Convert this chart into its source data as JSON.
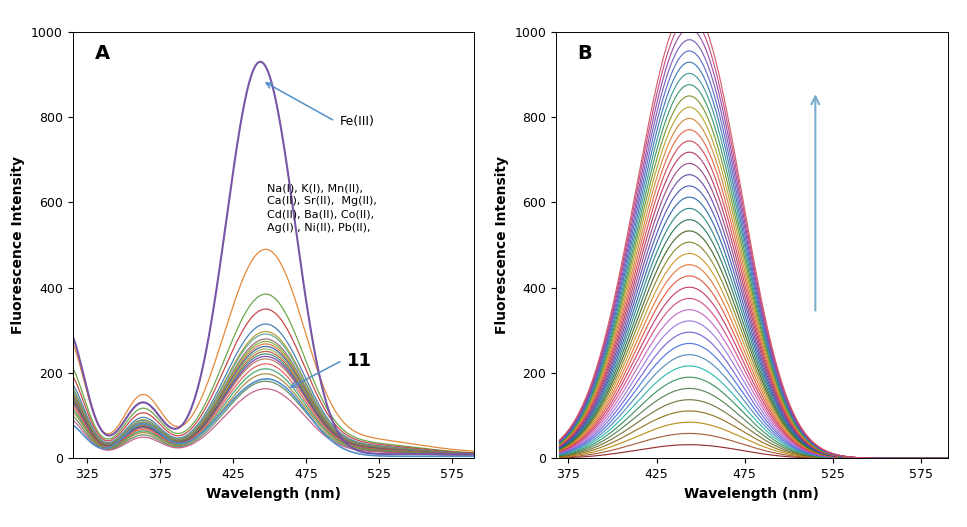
{
  "panel_A": {
    "label": "A",
    "xlabel": "Wavelength (nm)",
    "ylabel": "Fluorescence Intensity",
    "xlim": [
      315,
      590
    ],
    "ylim": [
      0,
      1000
    ],
    "xticks": [
      325,
      375,
      425,
      475,
      525,
      575
    ],
    "yticks": [
      0,
      200,
      400,
      600,
      800,
      1000
    ],
    "fe3_annotation": "Fe(III)",
    "other_annotation": "Na(I), K(I), Mn(II),\nCa(II), Sr(II),  Mg(II),\nCd(II), Ba(II), Co(II),\nAg(I) , Ni(II), Pb(II),",
    "sensor_annotation": "11",
    "fe3_color": "#7855a5",
    "sensor_color": "#5090c8",
    "annotation_arrow_color": "#5090c8"
  },
  "panel_B": {
    "label": "B",
    "xlabel": "Wavelength (nm)",
    "ylabel": "Fluorescence Intensity",
    "xlim": [
      368,
      590
    ],
    "ylim": [
      0,
      1000
    ],
    "xticks": [
      375,
      425,
      475,
      525,
      575
    ],
    "yticks": [
      0,
      200,
      400,
      600,
      800,
      1000
    ],
    "arrow_color": "#7aaccc",
    "num_spectra": 40,
    "peak_max": 985,
    "peak_min": 30
  },
  "other_colors_A": [
    "#e07820",
    "#5a9a30",
    "#c03030",
    "#3070b0",
    "#b09020",
    "#50a090",
    "#906070",
    "#70b030",
    "#d07030",
    "#3050a0",
    "#90b050",
    "#b05030",
    "#308070",
    "#7030b0",
    "#b07050",
    "#e05050",
    "#30a060",
    "#a08030",
    "#508050",
    "#c05080"
  ],
  "colors_B": [
    "#8b1a1a",
    "#a0522d",
    "#b8860b",
    "#8b6914",
    "#6b6b2f",
    "#4a7c4a",
    "#2e8b57",
    "#20b2aa",
    "#4682b4",
    "#4169e1",
    "#6a5acd",
    "#9370db",
    "#c060c0",
    "#d04080",
    "#c03060",
    "#e05030",
    "#e07030",
    "#cc9020",
    "#808020",
    "#406020",
    "#207050",
    "#208080",
    "#2060a0",
    "#4050b0",
    "#6040a0",
    "#904080",
    "#b03060",
    "#d04050",
    "#e06040",
    "#d08030",
    "#b0a020",
    "#709020",
    "#309060",
    "#309090",
    "#3070b0",
    "#5060c0",
    "#7050b0",
    "#9040a0",
    "#c04080",
    "#d05060"
  ]
}
